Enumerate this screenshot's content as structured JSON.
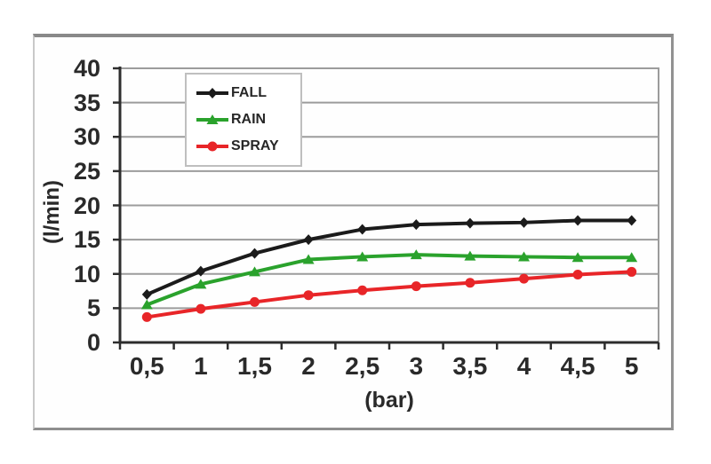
{
  "window": {
    "background": "#ffffff"
  },
  "frame": {
    "border_color": "#8e8e8e",
    "background": "#fefefe"
  },
  "text_color": "#2a2a2a",
  "grid_color": "#9c9c9c",
  "axis_color": "#2d2d2d",
  "chart_data": {
    "type": "line",
    "title": "",
    "xlabel": "(bar)",
    "ylabel": "(l/min)",
    "x_values": [
      0.5,
      1,
      1.5,
      2,
      2.5,
      3,
      3.5,
      4,
      4.5,
      5
    ],
    "x_tick_labels": [
      "0,5",
      "1",
      "1,5",
      "2",
      "2,5",
      "3",
      "3,5",
      "4",
      "4,5",
      "5"
    ],
    "y_tick_labels": [
      "0",
      "5",
      "10",
      "15",
      "20",
      "25",
      "30",
      "35",
      "40"
    ],
    "ylim": [
      0,
      40
    ],
    "ytick_step": 5,
    "grid": true,
    "legend_position": "top-center-inside",
    "series": [
      {
        "name": "FALL",
        "color": "#1b1b1b",
        "marker": "diamond",
        "values": [
          7.0,
          10.4,
          13.0,
          15.0,
          16.5,
          17.2,
          17.4,
          17.5,
          17.8,
          17.8
        ]
      },
      {
        "name": "RAIN",
        "color": "#2aa22c",
        "marker": "triangle",
        "values": [
          5.5,
          8.5,
          10.3,
          12.1,
          12.5,
          12.8,
          12.6,
          12.5,
          12.4,
          12.4
        ]
      },
      {
        "name": "SPRAY",
        "color": "#e82528",
        "marker": "circle",
        "values": [
          3.7,
          4.9,
          5.9,
          6.9,
          7.6,
          8.2,
          8.7,
          9.3,
          9.9,
          10.3
        ]
      }
    ]
  }
}
